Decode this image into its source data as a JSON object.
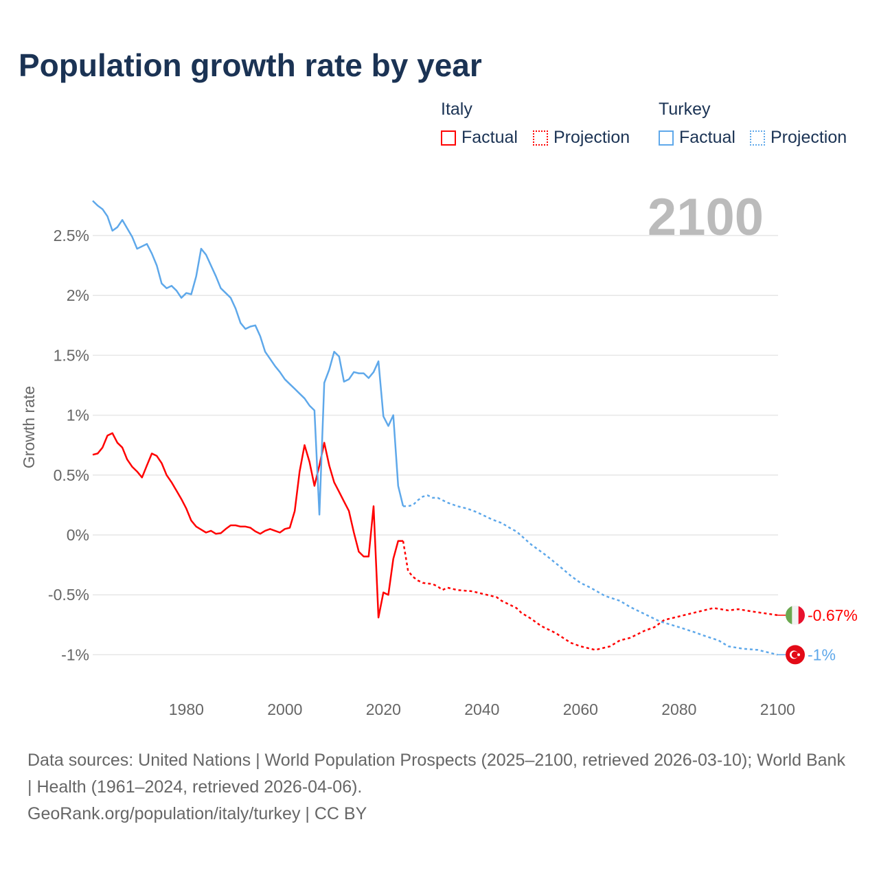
{
  "chart_data": {
    "type": "line",
    "title": "Population growth rate by year",
    "ylabel": "Growth rate",
    "xlabel": "",
    "xlim": [
      1961,
      2100
    ],
    "ylim": [
      -1.1,
      2.8
    ],
    "x_ticks": [
      1980,
      2000,
      2020,
      2040,
      2060,
      2080,
      2100
    ],
    "x_tick_labels": [
      "1980",
      "2000",
      "2020",
      "2040",
      "2060",
      "2080",
      "2100"
    ],
    "y_ticks": [
      -1,
      -0.5,
      0,
      0.5,
      1,
      1.5,
      2,
      2.5
    ],
    "y_tick_labels": [
      "-1%",
      "-0.5%",
      "0%",
      "0.5%",
      "1%",
      "1.5%",
      "2%",
      "2.5%"
    ],
    "grid": true,
    "year_label": "2100",
    "legend": {
      "placement": "top-right",
      "groups": [
        {
          "country": "Italy",
          "factual": "Factual",
          "projection": "Projection"
        },
        {
          "country": "Turkey",
          "factual": "Factual",
          "projection": "Projection"
        }
      ]
    },
    "series": [
      {
        "name": "Italy",
        "color": "#ff0000",
        "end_label": "-0.67%",
        "flag": "italy-flag",
        "factual": [
          [
            1961,
            0.67
          ],
          [
            1962,
            0.68
          ],
          [
            1963,
            0.73
          ],
          [
            1964,
            0.83
          ],
          [
            1965,
            0.85
          ],
          [
            1966,
            0.77
          ],
          [
            1967,
            0.73
          ],
          [
            1968,
            0.63
          ],
          [
            1969,
            0.57
          ],
          [
            1970,
            0.53
          ],
          [
            1971,
            0.48
          ],
          [
            1972,
            0.58
          ],
          [
            1973,
            0.68
          ],
          [
            1974,
            0.66
          ],
          [
            1975,
            0.6
          ],
          [
            1976,
            0.5
          ],
          [
            1977,
            0.44
          ],
          [
            1978,
            0.37
          ],
          [
            1979,
            0.3
          ],
          [
            1980,
            0.22
          ],
          [
            1981,
            0.12
          ],
          [
            1982,
            0.07
          ],
          [
            1983,
            0.045
          ],
          [
            1984,
            0.02
          ],
          [
            1985,
            0.035
          ],
          [
            1986,
            0.01
          ],
          [
            1987,
            0.015
          ],
          [
            1988,
            0.05
          ],
          [
            1989,
            0.08
          ],
          [
            1990,
            0.08
          ],
          [
            1991,
            0.07
          ],
          [
            1992,
            0.07
          ],
          [
            1993,
            0.06
          ],
          [
            1994,
            0.03
          ],
          [
            1995,
            0.01
          ],
          [
            1996,
            0.035
          ],
          [
            1997,
            0.05
          ],
          [
            1998,
            0.035
          ],
          [
            1999,
            0.02
          ],
          [
            2000,
            0.05
          ],
          [
            2001,
            0.06
          ],
          [
            2002,
            0.2
          ],
          [
            2003,
            0.53
          ],
          [
            2004,
            0.75
          ],
          [
            2005,
            0.61
          ],
          [
            2006,
            0.41
          ],
          [
            2007,
            0.58
          ],
          [
            2008,
            0.77
          ],
          [
            2009,
            0.58
          ],
          [
            2010,
            0.44
          ],
          [
            2011,
            0.36
          ],
          [
            2012,
            0.28
          ],
          [
            2013,
            0.2
          ],
          [
            2014,
            0.02
          ],
          [
            2015,
            -0.14
          ],
          [
            2016,
            -0.18
          ],
          [
            2017,
            -0.18
          ],
          [
            2018,
            0.24
          ],
          [
            2019,
            -0.69
          ],
          [
            2020,
            -0.48
          ],
          [
            2021,
            -0.5
          ],
          [
            2022,
            -0.2
          ],
          [
            2023,
            -0.05
          ],
          [
            2024,
            -0.05
          ]
        ],
        "projection": [
          [
            2024,
            -0.05
          ],
          [
            2025,
            -0.3
          ],
          [
            2026,
            -0.35
          ],
          [
            2027,
            -0.38
          ],
          [
            2028,
            -0.4
          ],
          [
            2030,
            -0.41
          ],
          [
            2031,
            -0.43
          ],
          [
            2032,
            -0.46
          ],
          [
            2033,
            -0.44
          ],
          [
            2035,
            -0.46
          ],
          [
            2038,
            -0.47
          ],
          [
            2040,
            -0.49
          ],
          [
            2042,
            -0.51
          ],
          [
            2043,
            -0.52
          ],
          [
            2044,
            -0.55
          ],
          [
            2046,
            -0.59
          ],
          [
            2047,
            -0.61
          ],
          [
            2048,
            -0.65
          ],
          [
            2050,
            -0.7
          ],
          [
            2052,
            -0.76
          ],
          [
            2055,
            -0.82
          ],
          [
            2058,
            -0.9
          ],
          [
            2060,
            -0.93
          ],
          [
            2063,
            -0.96
          ],
          [
            2066,
            -0.93
          ],
          [
            2068,
            -0.88
          ],
          [
            2070,
            -0.86
          ],
          [
            2073,
            -0.8
          ],
          [
            2075,
            -0.77
          ],
          [
            2077,
            -0.71
          ],
          [
            2080,
            -0.68
          ],
          [
            2085,
            -0.63
          ],
          [
            2087,
            -0.61
          ],
          [
            2090,
            -0.63
          ],
          [
            2092,
            -0.62
          ],
          [
            2095,
            -0.64
          ],
          [
            2100,
            -0.67
          ]
        ]
      },
      {
        "name": "Turkey",
        "color": "#5ea8ea",
        "end_label": "-1%",
        "flag": "turkey-flag",
        "factual": [
          [
            1961,
            2.79
          ],
          [
            1962,
            2.75
          ],
          [
            1963,
            2.72
          ],
          [
            1964,
            2.66
          ],
          [
            1965,
            2.54
          ],
          [
            1966,
            2.57
          ],
          [
            1967,
            2.63
          ],
          [
            1968,
            2.56
          ],
          [
            1969,
            2.49
          ],
          [
            1970,
            2.39
          ],
          [
            1971,
            2.41
          ],
          [
            1972,
            2.43
          ],
          [
            1973,
            2.35
          ],
          [
            1974,
            2.25
          ],
          [
            1975,
            2.1
          ],
          [
            1976,
            2.06
          ],
          [
            1977,
            2.08
          ],
          [
            1978,
            2.04
          ],
          [
            1979,
            1.98
          ],
          [
            1980,
            2.02
          ],
          [
            1981,
            2.01
          ],
          [
            1982,
            2.16
          ],
          [
            1983,
            2.39
          ],
          [
            1984,
            2.34
          ],
          [
            1985,
            2.25
          ],
          [
            1986,
            2.16
          ],
          [
            1987,
            2.06
          ],
          [
            1988,
            2.02
          ],
          [
            1989,
            1.98
          ],
          [
            1990,
            1.89
          ],
          [
            1991,
            1.77
          ],
          [
            1992,
            1.72
          ],
          [
            1993,
            1.74
          ],
          [
            1994,
            1.75
          ],
          [
            1995,
            1.66
          ],
          [
            1996,
            1.53
          ],
          [
            1997,
            1.47
          ],
          [
            1998,
            1.41
          ],
          [
            1999,
            1.36
          ],
          [
            2000,
            1.3
          ],
          [
            2001,
            1.26
          ],
          [
            2002,
            1.22
          ],
          [
            2003,
            1.18
          ],
          [
            2004,
            1.14
          ],
          [
            2005,
            1.08
          ],
          [
            2006,
            1.04
          ],
          [
            2007,
            0.17
          ],
          [
            2008,
            1.27
          ],
          [
            2009,
            1.38
          ],
          [
            2010,
            1.53
          ],
          [
            2011,
            1.49
          ],
          [
            2012,
            1.28
          ],
          [
            2013,
            1.3
          ],
          [
            2014,
            1.36
          ],
          [
            2015,
            1.35
          ],
          [
            2016,
            1.35
          ],
          [
            2017,
            1.31
          ],
          [
            2018,
            1.36
          ],
          [
            2019,
            1.45
          ],
          [
            2020,
            0.99
          ],
          [
            2021,
            0.91
          ],
          [
            2022,
            1.0
          ],
          [
            2023,
            0.41
          ],
          [
            2024,
            0.24
          ]
        ],
        "projection": [
          [
            2024,
            0.24
          ],
          [
            2025,
            0.24
          ],
          [
            2026,
            0.25
          ],
          [
            2027,
            0.29
          ],
          [
            2028,
            0.32
          ],
          [
            2029,
            0.33
          ],
          [
            2030,
            0.31
          ],
          [
            2031,
            0.31
          ],
          [
            2032,
            0.29
          ],
          [
            2033,
            0.27
          ],
          [
            2035,
            0.24
          ],
          [
            2037,
            0.22
          ],
          [
            2039,
            0.19
          ],
          [
            2040,
            0.17
          ],
          [
            2042,
            0.13
          ],
          [
            2044,
            0.1
          ],
          [
            2046,
            0.05
          ],
          [
            2047,
            0.03
          ],
          [
            2050,
            -0.08
          ],
          [
            2053,
            -0.17
          ],
          [
            2056,
            -0.27
          ],
          [
            2058,
            -0.34
          ],
          [
            2060,
            -0.4
          ],
          [
            2062,
            -0.44
          ],
          [
            2065,
            -0.51
          ],
          [
            2068,
            -0.55
          ],
          [
            2070,
            -0.6
          ],
          [
            2073,
            -0.66
          ],
          [
            2076,
            -0.72
          ],
          [
            2080,
            -0.77
          ],
          [
            2083,
            -0.81
          ],
          [
            2085,
            -0.84
          ],
          [
            2088,
            -0.88
          ],
          [
            2090,
            -0.93
          ],
          [
            2093,
            -0.95
          ],
          [
            2096,
            -0.96
          ],
          [
            2100,
            -1.0
          ]
        ]
      }
    ]
  },
  "source": {
    "line1": "Data sources: United Nations | World Population Prospects (2025–2100, retrieved 2026-03-10); World Bank | Health (1961–2024, retrieved 2026-04-06).",
    "line2": "GeoRank.org/population/italy/turkey | CC BY"
  }
}
